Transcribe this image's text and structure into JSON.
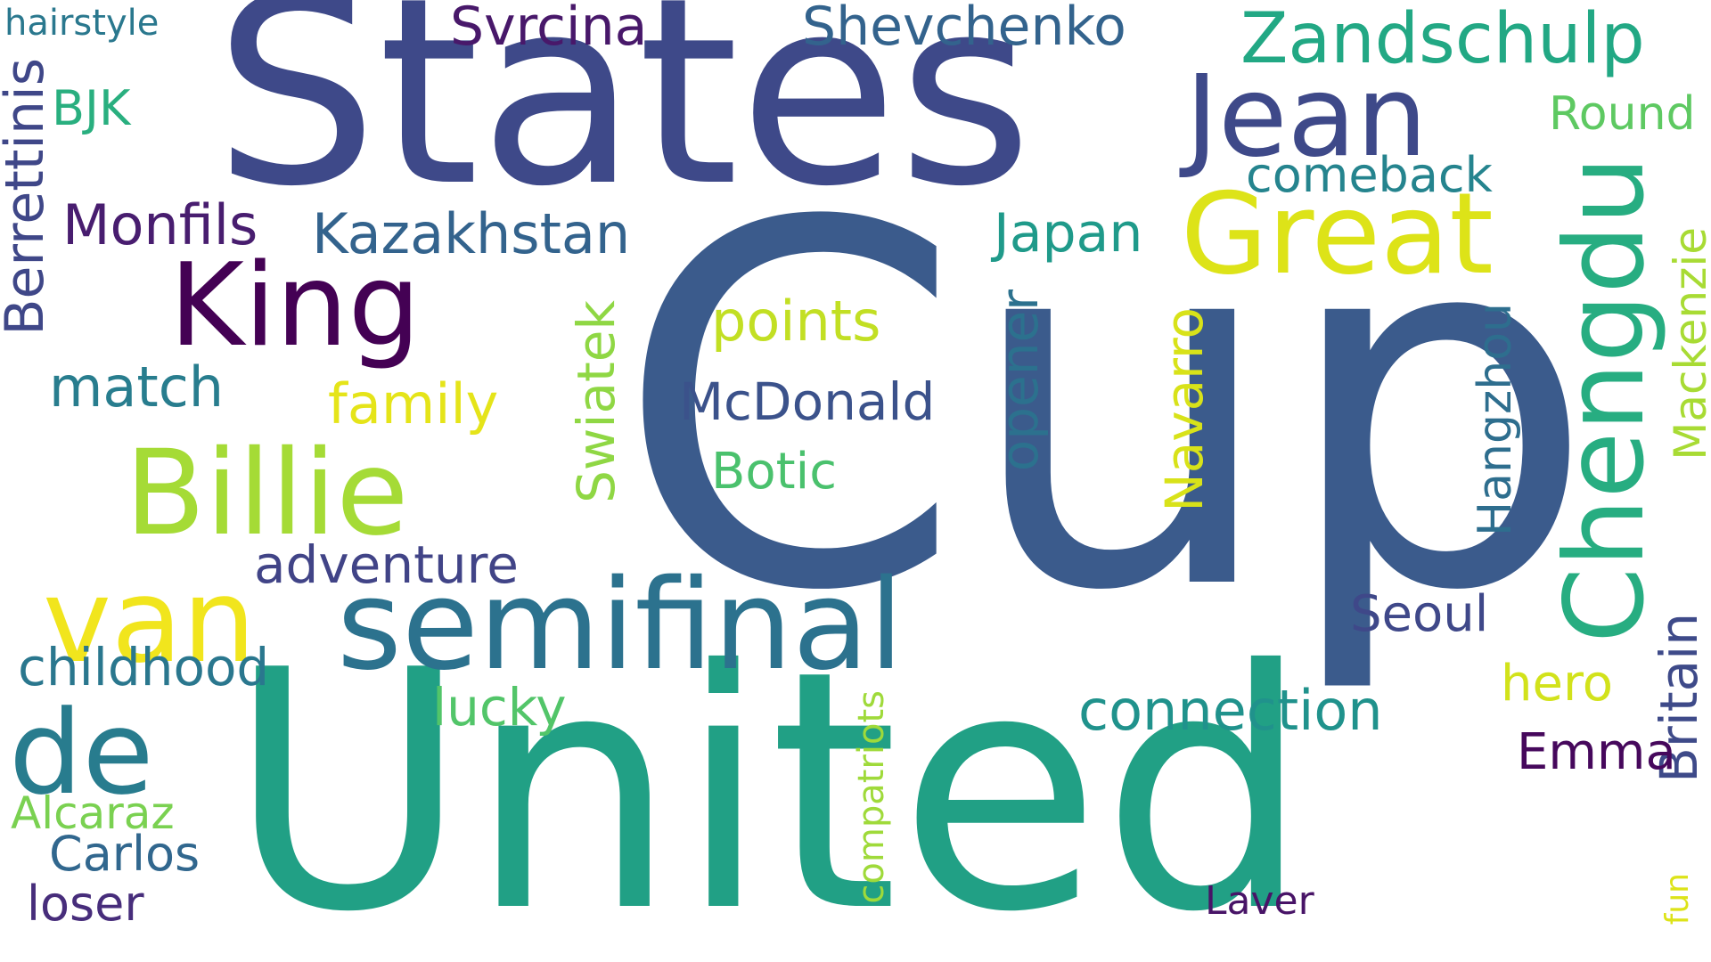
{
  "words": [
    {
      "text": "Cup",
      "color": "#3b5b8c"
    },
    {
      "text": "United",
      "color": "#21a085"
    },
    {
      "text": "States",
      "color": "#3e4989"
    },
    {
      "text": "Billie",
      "color": "#a5db36"
    },
    {
      "text": "semifinal",
      "color": "#2c728e"
    },
    {
      "text": "King",
      "color": "#440154"
    },
    {
      "text": "Great",
      "color": "#dde318"
    },
    {
      "text": "Jean",
      "color": "#3e4989"
    },
    {
      "text": "Chengdu",
      "color": "#27ad81"
    },
    {
      "text": "van",
      "color": "#f1e51d"
    },
    {
      "text": "de",
      "color": "#287c8e"
    },
    {
      "text": "Zandschulp",
      "color": "#22a884"
    },
    {
      "text": "Svrcina",
      "color": "#48186a"
    },
    {
      "text": "Shevchenko",
      "color": "#33638d"
    },
    {
      "text": "Monfils",
      "color": "#481d6f"
    },
    {
      "text": "Kazakhstan",
      "color": "#33638d"
    },
    {
      "text": "Berrettinis",
      "color": "#3f4788"
    },
    {
      "text": "match",
      "color": "#287d8e"
    },
    {
      "text": "family",
      "color": "#e5e419"
    },
    {
      "text": "points",
      "color": "#c2df23"
    },
    {
      "text": "Japan",
      "color": "#1f9a8a"
    },
    {
      "text": "comeback",
      "color": "#25848e"
    },
    {
      "text": "Round",
      "color": "#5ec962"
    },
    {
      "text": "BJK",
      "color": "#29af7f"
    },
    {
      "text": "hairstyle",
      "color": "#2a788e"
    },
    {
      "text": "Swiatek",
      "color": "#8fd744"
    },
    {
      "text": "McDonald",
      "color": "#3b528b"
    },
    {
      "text": "opener",
      "color": "#2c718e"
    },
    {
      "text": "Navarro",
      "color": "#d8e219"
    },
    {
      "text": "Hangzhou",
      "color": "#2e6e8e"
    },
    {
      "text": "Botic",
      "color": "#4ac16d"
    },
    {
      "text": "adventure",
      "color": "#414487"
    },
    {
      "text": "childhood",
      "color": "#2a778e"
    },
    {
      "text": "Seoul",
      "color": "#3f4889"
    },
    {
      "text": "Mackenzie",
      "color": "#a8db34"
    },
    {
      "text": "Britain",
      "color": "#3e4a89"
    },
    {
      "text": "hero",
      "color": "#d2e21b"
    },
    {
      "text": "connection",
      "color": "#20928c"
    },
    {
      "text": "lucky",
      "color": "#52c569"
    },
    {
      "text": "Emma",
      "color": "#46085c"
    },
    {
      "text": "Alcaraz",
      "color": "#7ad151"
    },
    {
      "text": "Carlos",
      "color": "#31678e"
    },
    {
      "text": "loser",
      "color": "#472d7b"
    },
    {
      "text": "compatriots",
      "color": "#9fda3a"
    },
    {
      "text": "Laver",
      "color": "#481467"
    },
    {
      "text": "fun",
      "color": "#dde318"
    }
  ]
}
